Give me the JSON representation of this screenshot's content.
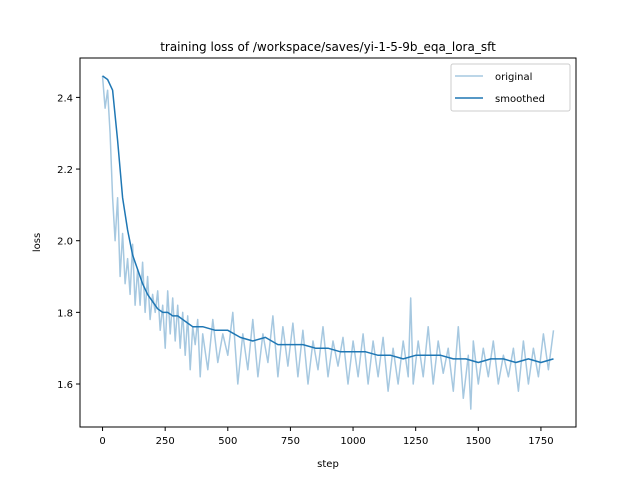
{
  "chart_data": {
    "type": "line",
    "title": "training loss of /workspace/saves/yi-1-5-9b_eqa_lora_sft",
    "xlabel": "step",
    "ylabel": "loss",
    "xlim": [
      -90,
      1890
    ],
    "ylim": [
      1.48,
      2.51
    ],
    "xticks": [
      0,
      250,
      500,
      750,
      1000,
      1250,
      1500,
      1750
    ],
    "yticks": [
      1.6,
      1.8,
      2.0,
      2.2,
      2.4
    ],
    "ytick_labels": [
      "1.6",
      "1.8",
      "2.0",
      "2.2",
      "2.4"
    ],
    "grid": false,
    "legend_position": "top-right",
    "series": [
      {
        "name": "original",
        "color": "#a6c8e0",
        "x": [
          0,
          10,
          20,
          30,
          40,
          50,
          60,
          70,
          80,
          90,
          100,
          110,
          120,
          130,
          140,
          150,
          160,
          170,
          180,
          190,
          200,
          210,
          220,
          230,
          240,
          250,
          260,
          270,
          280,
          290,
          300,
          310,
          320,
          330,
          340,
          350,
          360,
          370,
          380,
          390,
          400,
          420,
          440,
          460,
          480,
          500,
          520,
          540,
          560,
          580,
          600,
          620,
          640,
          660,
          680,
          700,
          720,
          740,
          760,
          780,
          800,
          820,
          840,
          860,
          880,
          900,
          920,
          940,
          960,
          980,
          1000,
          1020,
          1040,
          1060,
          1080,
          1100,
          1120,
          1140,
          1160,
          1180,
          1200,
          1220,
          1230,
          1240,
          1260,
          1280,
          1300,
          1320,
          1340,
          1360,
          1380,
          1400,
          1420,
          1440,
          1460,
          1470,
          1480,
          1500,
          1520,
          1540,
          1560,
          1580,
          1600,
          1620,
          1640,
          1660,
          1680,
          1700,
          1720,
          1740,
          1760,
          1780,
          1800
        ],
        "values": [
          2.46,
          2.37,
          2.42,
          2.3,
          2.12,
          2.0,
          2.12,
          1.9,
          2.02,
          1.88,
          1.95,
          1.85,
          1.99,
          1.82,
          1.92,
          1.82,
          1.94,
          1.8,
          1.9,
          1.78,
          1.85,
          1.8,
          1.86,
          1.75,
          1.82,
          1.7,
          1.86,
          1.74,
          1.84,
          1.72,
          1.82,
          1.7,
          1.8,
          1.68,
          1.79,
          1.64,
          1.76,
          1.71,
          1.78,
          1.62,
          1.74,
          1.64,
          1.78,
          1.66,
          1.74,
          1.68,
          1.8,
          1.6,
          1.74,
          1.64,
          1.78,
          1.62,
          1.74,
          1.66,
          1.79,
          1.62,
          1.76,
          1.65,
          1.77,
          1.62,
          1.75,
          1.6,
          1.72,
          1.64,
          1.76,
          1.62,
          1.72,
          1.65,
          1.73,
          1.6,
          1.72,
          1.62,
          1.74,
          1.6,
          1.72,
          1.62,
          1.73,
          1.58,
          1.7,
          1.6,
          1.72,
          1.62,
          1.84,
          1.6,
          1.72,
          1.62,
          1.76,
          1.6,
          1.72,
          1.63,
          1.7,
          1.58,
          1.76,
          1.56,
          1.68,
          1.53,
          1.72,
          1.6,
          1.7,
          1.62,
          1.72,
          1.6,
          1.68,
          1.62,
          1.7,
          1.58,
          1.72,
          1.6,
          1.7,
          1.62,
          1.74,
          1.64,
          1.75
        ]
      },
      {
        "name": "smoothed",
        "color": "#1f77b4",
        "x": [
          0,
          20,
          40,
          60,
          80,
          100,
          120,
          140,
          160,
          180,
          200,
          220,
          240,
          260,
          280,
          300,
          320,
          340,
          360,
          380,
          400,
          450,
          500,
          550,
          600,
          650,
          700,
          750,
          800,
          850,
          900,
          950,
          1000,
          1050,
          1100,
          1150,
          1200,
          1250,
          1300,
          1350,
          1400,
          1450,
          1500,
          1550,
          1600,
          1650,
          1700,
          1750,
          1800
        ],
        "values": [
          2.46,
          2.45,
          2.42,
          2.28,
          2.12,
          2.03,
          1.96,
          1.92,
          1.88,
          1.85,
          1.83,
          1.81,
          1.8,
          1.8,
          1.79,
          1.79,
          1.78,
          1.77,
          1.76,
          1.76,
          1.76,
          1.75,
          1.75,
          1.73,
          1.72,
          1.73,
          1.71,
          1.71,
          1.71,
          1.7,
          1.7,
          1.69,
          1.69,
          1.69,
          1.68,
          1.68,
          1.67,
          1.68,
          1.68,
          1.68,
          1.67,
          1.67,
          1.66,
          1.67,
          1.67,
          1.66,
          1.67,
          1.66,
          1.67
        ]
      }
    ]
  }
}
